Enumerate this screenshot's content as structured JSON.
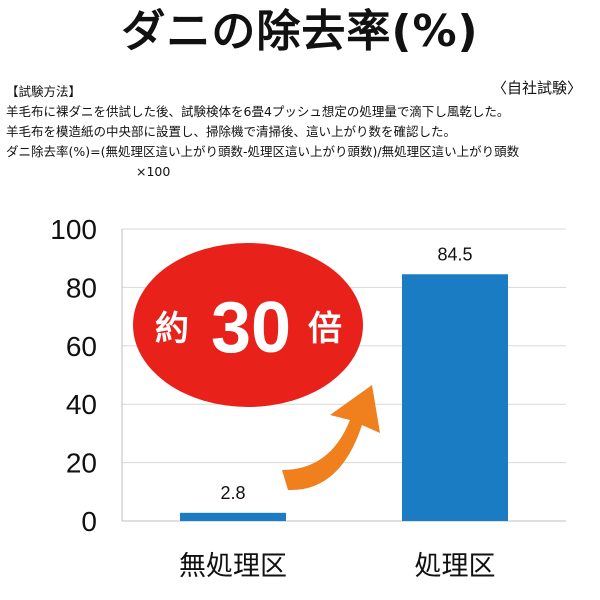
{
  "header": {
    "title": "ダニの除去率(%)",
    "source_note": "〈自社試験〉"
  },
  "method": {
    "heading": "【試験方法】",
    "line1": "羊毛布に裸ダニを供試した後、試験検体を6畳4プッシュ想定の処理量で滴下し風乾した。",
    "line2": "羊毛布を模造紙の中央部に設置し、掃除機で清掃後、這い上がり数を確認した。",
    "line3": "ダニ除去率(%)=(無処理区這い上がり頭数-処理区這い上がり頭数)/無処理区這い上がり頭数",
    "line4": "×100"
  },
  "badge": {
    "prefix": "約",
    "number": "30",
    "suffix": "倍"
  },
  "colors": {
    "bar": "#1a7dc4",
    "badge": "#e8211b",
    "arrow": "#f07f1e",
    "grid": "#d9d9d9"
  },
  "chart_data": {
    "type": "bar",
    "categories": [
      "無処理区",
      "処理区"
    ],
    "values": [
      2.8,
      84.5
    ],
    "data_labels": [
      "2.8",
      "84.5"
    ],
    "title": "ダニの除去率(%)",
    "xlabel": "",
    "ylabel": "",
    "ylim": [
      0,
      100
    ],
    "yticks": [
      0,
      20,
      40,
      60,
      80,
      100
    ],
    "grid": true,
    "legend": "none"
  }
}
